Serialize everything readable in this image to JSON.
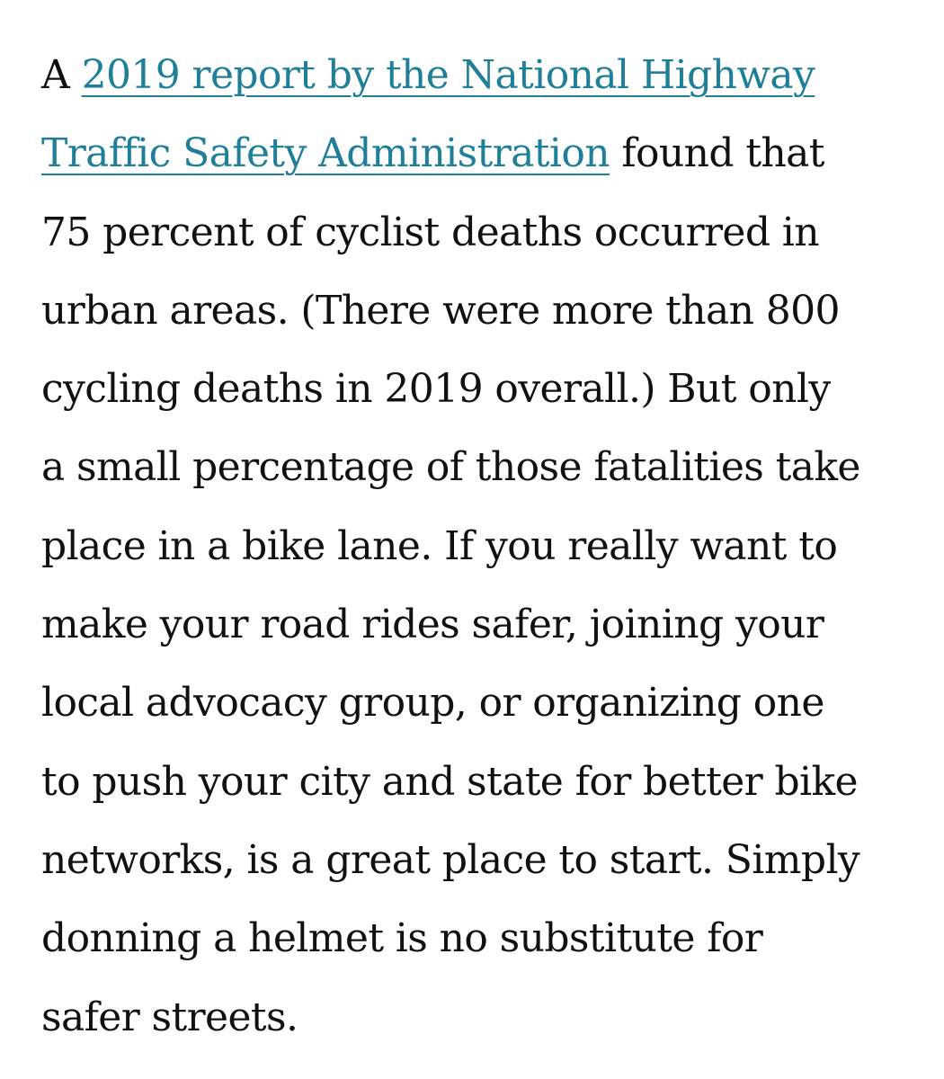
{
  "article": {
    "paragraph": {
      "prefix": "A ",
      "link_line1": "2019 report by the National Highway",
      "link_line2": "Traffic Safety Administration",
      "after_link": " found that",
      "lines": [
        "75 percent of cyclist deaths occurred in",
        "urban areas. (There were more than 800",
        "cycling deaths in 2019 overall.) But only",
        "a small percentage of those fatalities take",
        "place in a bike lane. If you really want to",
        "make your road rides safer, joining your",
        "local advocacy group, or organizing one",
        "to push your city and state for better bike",
        "networks, is a great place to start. Simply",
        "donning a helmet is no substitute for",
        "safer streets."
      ]
    },
    "colors": {
      "text": "#111111",
      "link": "#1f7f98",
      "background": "#ffffff"
    }
  }
}
